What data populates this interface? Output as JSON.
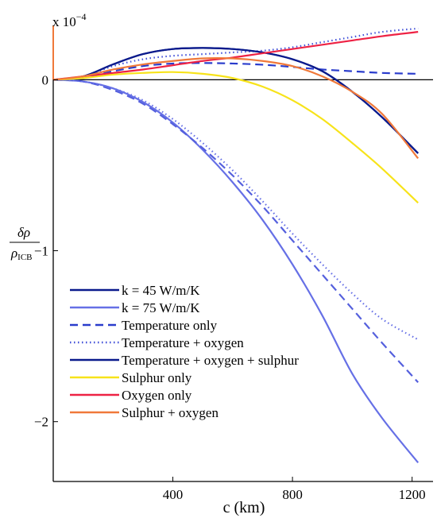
{
  "chart_data": {
    "type": "line",
    "title": "",
    "xlabel": "c (km)",
    "ylabel_numerator": "δρ",
    "ylabel_denominator": "ρ",
    "ylabel_sub": "ICB",
    "y_multiplier_prefix": "x 10",
    "y_multiplier_exp": "−4",
    "xlim": [
      0,
      1270
    ],
    "ylim": [
      -2.35,
      0.29
    ],
    "xticks": [
      400,
      800,
      1200
    ],
    "xtick_labels": [
      "400",
      "800",
      "1200"
    ],
    "yticks": [
      0,
      -1,
      -2
    ],
    "ytick_labels": [
      "0",
      "−1",
      "−2"
    ],
    "grid": false,
    "legend_position": "lower-left",
    "x": [
      0,
      100,
      200,
      300,
      400,
      500,
      600,
      700,
      800,
      900,
      1000,
      1100,
      1220
    ],
    "series": [
      {
        "name": "k = 45 W/m/K",
        "group": "k45",
        "color": "#0a1a8c",
        "dash": "solid",
        "values": [
          0,
          0.02,
          0.09,
          0.15,
          0.18,
          0.186,
          0.18,
          0.16,
          0.12,
          0.05,
          -0.07,
          -0.22,
          -0.43
        ]
      },
      {
        "name": "k = 75 W/m/K",
        "group": "k75",
        "color": "#6670e6",
        "dash": "solid",
        "values": [
          0,
          -0.01,
          -0.05,
          -0.13,
          -0.25,
          -0.41,
          -0.6,
          -0.82,
          -1.08,
          -1.38,
          -1.72,
          -1.98,
          -2.24
        ]
      },
      {
        "name": "Temperature only",
        "group": "k45",
        "color": "#2a3ccc",
        "dash": "dashed",
        "values": [
          0,
          0.01,
          0.05,
          0.08,
          0.095,
          0.098,
          0.095,
          0.088,
          0.075,
          0.06,
          0.05,
          0.04,
          0.035
        ]
      },
      {
        "name": "Temperature only",
        "group": "k75",
        "color": "#5560dd",
        "dash": "dashed",
        "values": [
          0,
          -0.01,
          -0.06,
          -0.14,
          -0.26,
          -0.4,
          -0.56,
          -0.74,
          -0.94,
          -1.14,
          -1.34,
          -1.54,
          -1.77
        ]
      },
      {
        "name": "Temperature + oxygen",
        "group": "k45",
        "color": "#4250d8",
        "dash": "dotted",
        "values": [
          0,
          0.02,
          0.08,
          0.12,
          0.14,
          0.15,
          0.16,
          0.17,
          0.19,
          0.22,
          0.25,
          0.28,
          0.3
        ]
      },
      {
        "name": "Temperature + oxygen",
        "group": "k75",
        "color": "#6670e6",
        "dash": "dotted",
        "values": [
          0,
          -0.01,
          -0.05,
          -0.12,
          -0.23,
          -0.37,
          -0.53,
          -0.71,
          -0.9,
          -1.08,
          -1.25,
          -1.4,
          -1.52
        ]
      },
      {
        "name": "Temperature + oxygen + sulphur",
        "group": "k45",
        "color": "#0a1a8c",
        "dash": "solid",
        "values": [
          0,
          0.02,
          0.09,
          0.15,
          0.18,
          0.186,
          0.18,
          0.16,
          0.12,
          0.05,
          -0.07,
          -0.22,
          -0.43
        ]
      },
      {
        "name": "Sulphur only",
        "group": "common",
        "color": "#f7e31a",
        "dash": "solid",
        "values": [
          0,
          0.01,
          0.03,
          0.04,
          0.045,
          0.035,
          0.01,
          -0.04,
          -0.12,
          -0.23,
          -0.37,
          -0.52,
          -0.72
        ]
      },
      {
        "name": "Oxygen only",
        "group": "common",
        "color": "#ee2244",
        "dash": "solid",
        "values": [
          0,
          0.02,
          0.04,
          0.06,
          0.085,
          0.11,
          0.13,
          0.155,
          0.18,
          0.205,
          0.23,
          0.255,
          0.28
        ]
      },
      {
        "name": "Sulphur + oxygen",
        "group": "common",
        "color": "#f0793a",
        "dash": "solid",
        "values": [
          0,
          0.02,
          0.06,
          0.09,
          0.11,
          0.125,
          0.125,
          0.11,
          0.08,
          0.02,
          -0.07,
          -0.2,
          -0.46
        ]
      }
    ],
    "legend": [
      {
        "label": "k = 45 W/m/K",
        "color": "#0a1a8c",
        "dash": "solid"
      },
      {
        "label": "k = 75 W/m/K",
        "color": "#6670e6",
        "dash": "solid"
      },
      {
        "label": "Temperature only",
        "color": "#2a3ccc",
        "dash": "dashed"
      },
      {
        "label": "Temperature + oxygen",
        "color": "#4250d8",
        "dash": "dotted"
      },
      {
        "label": "Temperature + oxygen + sulphur",
        "color": "#0a1a8c",
        "dash": "solid"
      },
      {
        "label": "Sulphur only",
        "color": "#f7e31a",
        "dash": "solid"
      },
      {
        "label": "Oxygen only",
        "color": "#ee2244",
        "dash": "solid"
      },
      {
        "label": "Sulphur + oxygen",
        "color": "#f0793a",
        "dash": "solid"
      }
    ],
    "colors": {
      "axis": "#000000",
      "zero_line": "#000000",
      "left_accent": "#f0793a"
    }
  }
}
